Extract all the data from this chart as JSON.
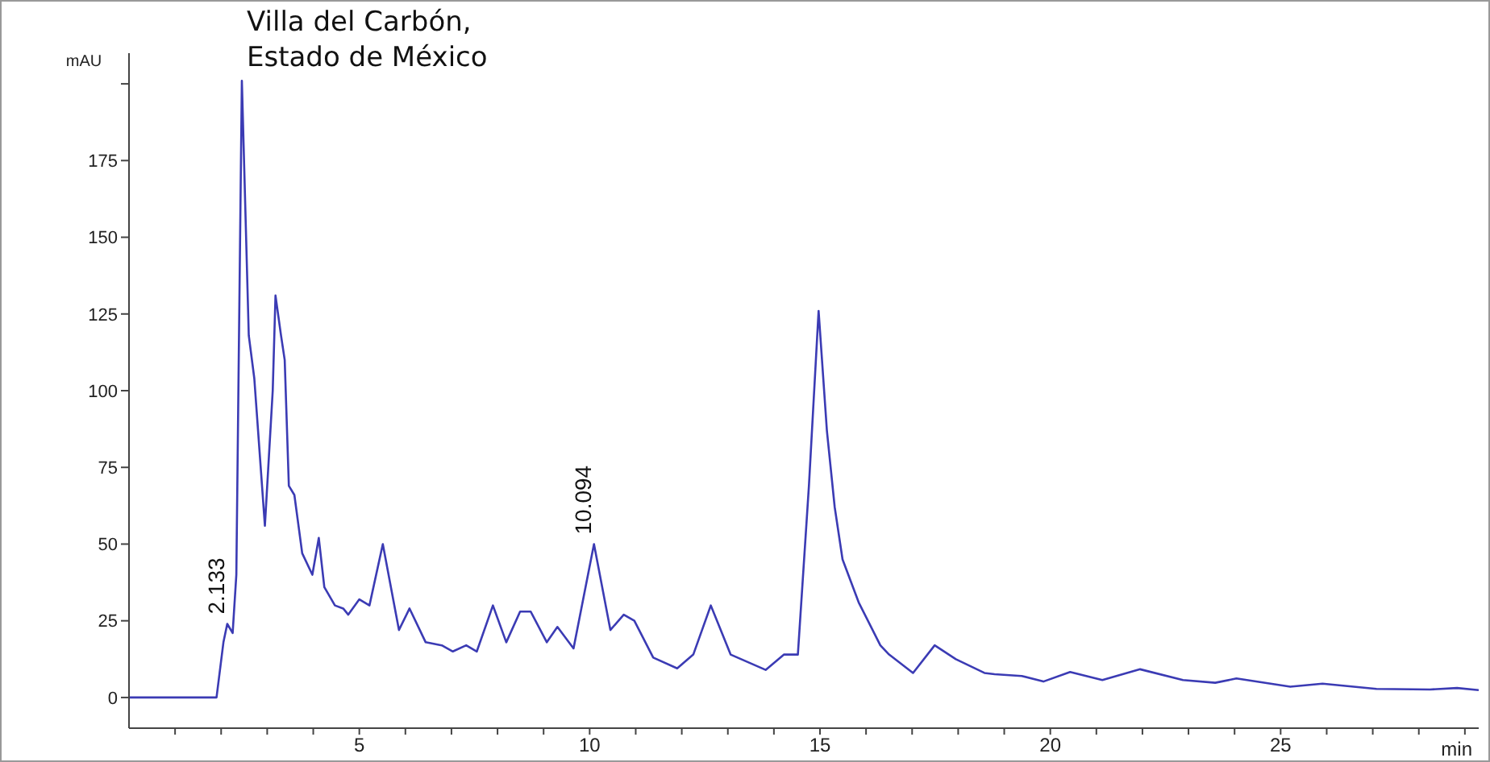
{
  "chart_data": {
    "type": "line",
    "title": "Villa del Carbón, Estado de México",
    "xlabel": "min",
    "ylabel": "mAU",
    "x": [
      0,
      1.9,
      2.05,
      2.133,
      2.25,
      2.33,
      2.45,
      2.6,
      2.72,
      2.95,
      3.12,
      3.18,
      3.3,
      3.38,
      3.47,
      3.59,
      3.76,
      3.98,
      4.12,
      4.24,
      4.47,
      4.65,
      4.76,
      5.0,
      5.22,
      5.51,
      5.86,
      6.09,
      6.44,
      6.79,
      7.03,
      7.32,
      7.55,
      7.9,
      8.19,
      8.49,
      8.72,
      9.07,
      9.3,
      9.65,
      10.094,
      10.45,
      10.74,
      10.97,
      11.38,
      11.9,
      12.25,
      12.63,
      13.06,
      13.82,
      14.22,
      14.52,
      14.76,
      14.97,
      15.15,
      15.32,
      15.49,
      15.84,
      16.31,
      16.5,
      17.02,
      17.49,
      17.95,
      18.57,
      18.79,
      19.38,
      19.85,
      20.43,
      21.13,
      21.95,
      22.88,
      23.58,
      24.04,
      25.21,
      25.91,
      27.08,
      28.24,
      28.83,
      29.3
    ],
    "series": [
      {
        "color": "#3b3bb4",
        "values": [
          0,
          0,
          18,
          24,
          21,
          40,
          201,
          118,
          104,
          56,
          100,
          131,
          118,
          110,
          69,
          66,
          47,
          40,
          52,
          36,
          30,
          29,
          27,
          32,
          30,
          50,
          22,
          29,
          18,
          17,
          15,
          17,
          15,
          30,
          18,
          28,
          28,
          18,
          23,
          16,
          50,
          22,
          27,
          25,
          13,
          9.5,
          14,
          30,
          14,
          9,
          14,
          14,
          69,
          126,
          87,
          62,
          45,
          31,
          17,
          14,
          8,
          17,
          12.5,
          8,
          7.6,
          7,
          5.2,
          8.3,
          5.7,
          9.2,
          5.7,
          4.8,
          6.2,
          3.5,
          4.5,
          2.8,
          2.6,
          3.1,
          2.4
        ]
      }
    ],
    "xlim": [
      0,
      29.3
    ],
    "ylim": [
      -10,
      210
    ],
    "xticks": [
      {
        "value": 1,
        "label": null
      },
      {
        "value": 2,
        "label": null
      },
      {
        "value": 3,
        "label": null
      },
      {
        "value": 4,
        "label": null
      },
      5,
      {
        "value": 6,
        "label": null
      },
      {
        "value": 7,
        "label": null
      },
      {
        "value": 8,
        "label": null
      },
      {
        "value": 9,
        "label": null
      },
      10,
      {
        "value": 11,
        "label": null
      },
      {
        "value": 12,
        "label": null
      },
      {
        "value": 13,
        "label": null
      },
      {
        "value": 14,
        "label": null
      },
      15,
      {
        "value": 16,
        "label": null
      },
      {
        "value": 17,
        "label": null
      },
      {
        "value": 18,
        "label": null
      },
      {
        "value": 19,
        "label": null
      },
      20,
      {
        "value": 21,
        "label": null
      },
      {
        "value": 22,
        "label": null
      },
      {
        "value": 23,
        "label": null
      },
      {
        "value": 24,
        "label": null
      },
      25,
      {
        "value": 26,
        "label": null
      },
      {
        "value": 27,
        "label": null
      },
      {
        "value": 28,
        "label": null
      },
      {
        "value": 29,
        "label": null
      }
    ],
    "yticks": [
      0,
      25,
      50,
      75,
      100,
      125,
      150,
      175,
      {
        "value": 200,
        "label": null
      }
    ],
    "annotations": [
      {
        "text": "2.133",
        "x": 2.133,
        "y": 24
      },
      {
        "text": "10.094",
        "x": 10.094,
        "y": 50
      }
    ],
    "marker": "none",
    "line_style": "solid"
  }
}
